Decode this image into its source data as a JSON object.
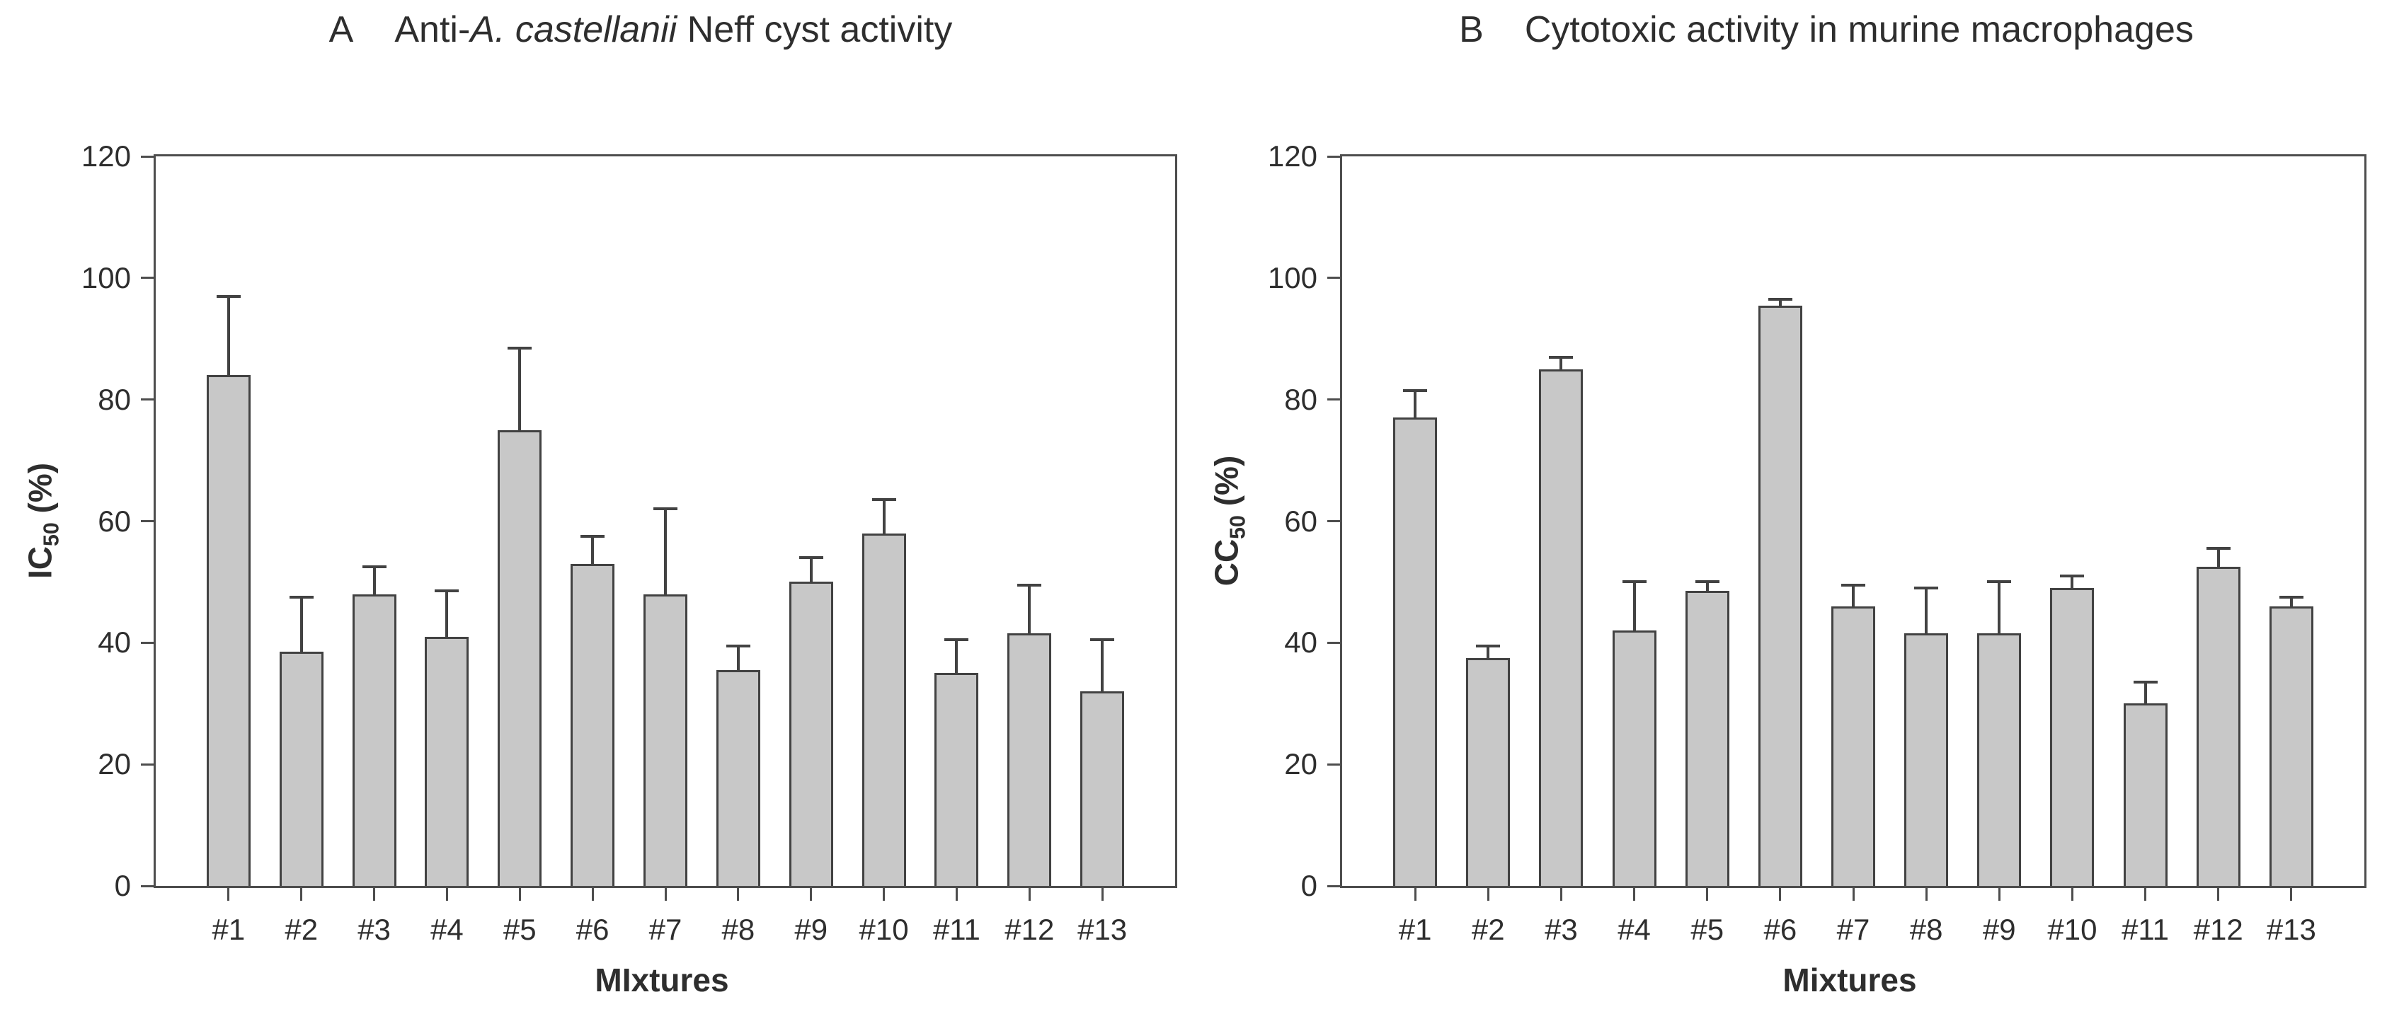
{
  "figure": {
    "background": "#ffffff",
    "bar_fill": "#c8c8c8",
    "bar_border": "#424242",
    "axis_color": "#4d4d4d",
    "text_color": "#2e2e2e"
  },
  "chart_data": [
    {
      "type": "bar",
      "panel_label": "A",
      "title_parts": {
        "pre": "Anti-",
        "italic": "A. castellanii",
        "post": " Neff cyst activity"
      },
      "title_full": "Anti-A. castellanii Neff cyst activity",
      "xlabel": "MIxtures",
      "ylabel": {
        "base": "IC",
        "sub": "50",
        "suffix": " (%)"
      },
      "categories": [
        "#1",
        "#2",
        "#3",
        "#4",
        "#5",
        "#6",
        "#7",
        "#8",
        "#9",
        "#10",
        "#11",
        "#12",
        "#13"
      ],
      "values": [
        84,
        38.5,
        48,
        41,
        75,
        53,
        48,
        35.5,
        50,
        58,
        35,
        41.5,
        32
      ],
      "errors": [
        13,
        9,
        4.5,
        7.5,
        13.5,
        4.5,
        14,
        4,
        4,
        5.5,
        5.5,
        8,
        8.5
      ],
      "ylim": [
        0,
        120
      ],
      "yticks": [
        0,
        20,
        40,
        60,
        80,
        100,
        120
      ],
      "grid": false,
      "legend": null
    },
    {
      "type": "bar",
      "panel_label": "B",
      "title_parts": {
        "pre": "Cytotoxic activity in murine macrophages",
        "italic": "",
        "post": ""
      },
      "title_full": "Cytotoxic activity in murine macrophages",
      "xlabel": "Mixtures",
      "ylabel": {
        "base": "CC",
        "sub": "50",
        "suffix": " (%)"
      },
      "categories": [
        "#1",
        "#2",
        "#3",
        "#4",
        "#5",
        "#6",
        "#7",
        "#8",
        "#9",
        "#10",
        "#11",
        "#12",
        "#13"
      ],
      "values": [
        77,
        37.5,
        85,
        42,
        48.5,
        95.5,
        46,
        41.5,
        41.5,
        49,
        30,
        52.5,
        46
      ],
      "errors": [
        4.5,
        2,
        2,
        8,
        1.5,
        1,
        3.5,
        7.5,
        8.5,
        2,
        3.5,
        3,
        1.5
      ],
      "ylim": [
        0,
        120
      ],
      "yticks": [
        0,
        20,
        40,
        60,
        80,
        100,
        120
      ],
      "grid": false,
      "legend": null
    }
  ]
}
